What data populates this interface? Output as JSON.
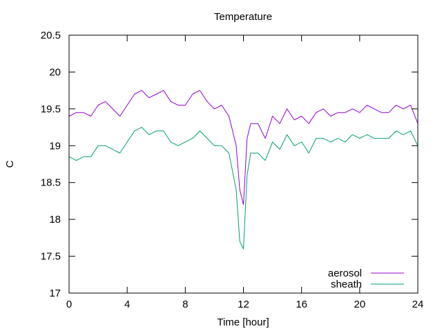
{
  "chart_data": {
    "type": "line",
    "title": "Temperature",
    "xlabel": "Time [hour]",
    "ylabel": "C",
    "xlim": [
      0,
      24
    ],
    "ylim": [
      17,
      20.5
    ],
    "x_ticks": [
      0,
      4,
      8,
      12,
      16,
      20,
      24
    ],
    "x_tick_labels": [
      "0",
      "4",
      "8",
      "12",
      "16",
      "20",
      "24"
    ],
    "y_ticks": [
      17,
      17.5,
      18,
      18.5,
      19,
      19.5,
      20,
      20.5
    ],
    "y_tick_labels": [
      "17",
      "17.5",
      "18",
      "18.5",
      "19",
      "19.5",
      "20",
      "20.5"
    ],
    "grid": false,
    "legend_position": "bottom-right",
    "series": [
      {
        "name": "aerosol",
        "color": "#9400d3",
        "x": [
          0,
          0.5,
          1,
          1.5,
          2,
          2.5,
          3,
          3.5,
          4,
          4.5,
          5,
          5.5,
          6,
          6.5,
          7,
          7.5,
          8,
          8.5,
          9,
          9.5,
          10,
          10.5,
          11,
          11.5,
          11.75,
          12,
          12.25,
          12.5,
          13,
          13.5,
          14,
          14.5,
          15,
          15.5,
          16,
          16.5,
          17,
          17.5,
          18,
          18.5,
          19,
          19.5,
          20,
          20.5,
          21,
          21.5,
          22,
          22.5,
          23,
          23.5,
          24
        ],
        "y": [
          19.4,
          19.45,
          19.45,
          19.4,
          19.55,
          19.6,
          19.5,
          19.4,
          19.55,
          19.7,
          19.75,
          19.65,
          19.7,
          19.75,
          19.6,
          19.55,
          19.55,
          19.7,
          19.75,
          19.6,
          19.5,
          19.55,
          19.4,
          19.0,
          18.4,
          18.2,
          19.1,
          19.3,
          19.3,
          19.1,
          19.4,
          19.3,
          19.5,
          19.35,
          19.4,
          19.3,
          19.45,
          19.5,
          19.4,
          19.45,
          19.45,
          19.5,
          19.45,
          19.55,
          19.5,
          19.45,
          19.45,
          19.55,
          19.5,
          19.55,
          19.3
        ]
      },
      {
        "name": "sheath",
        "color": "#009e73",
        "x": [
          0,
          0.5,
          1,
          1.5,
          2,
          2.5,
          3,
          3.5,
          4,
          4.5,
          5,
          5.5,
          6,
          6.5,
          7,
          7.5,
          8,
          8.5,
          9,
          9.5,
          10,
          10.5,
          11,
          11.5,
          11.75,
          12,
          12.25,
          12.5,
          13,
          13.5,
          14,
          14.5,
          15,
          15.5,
          16,
          16.5,
          17,
          17.5,
          18,
          18.5,
          19,
          19.5,
          20,
          20.5,
          21,
          21.5,
          22,
          22.5,
          23,
          23.5,
          24
        ],
        "y": [
          18.85,
          18.8,
          18.85,
          18.85,
          19.0,
          19.0,
          18.95,
          18.9,
          19.05,
          19.2,
          19.25,
          19.15,
          19.2,
          19.2,
          19.05,
          19.0,
          19.05,
          19.1,
          19.2,
          19.1,
          19.0,
          19.0,
          18.9,
          18.4,
          17.7,
          17.6,
          18.6,
          18.9,
          18.9,
          18.8,
          19.05,
          18.95,
          19.15,
          19.0,
          19.05,
          18.9,
          19.1,
          19.1,
          19.05,
          19.1,
          19.05,
          19.15,
          19.1,
          19.15,
          19.1,
          19.1,
          19.1,
          19.2,
          19.15,
          19.2,
          19.0
        ]
      }
    ]
  }
}
